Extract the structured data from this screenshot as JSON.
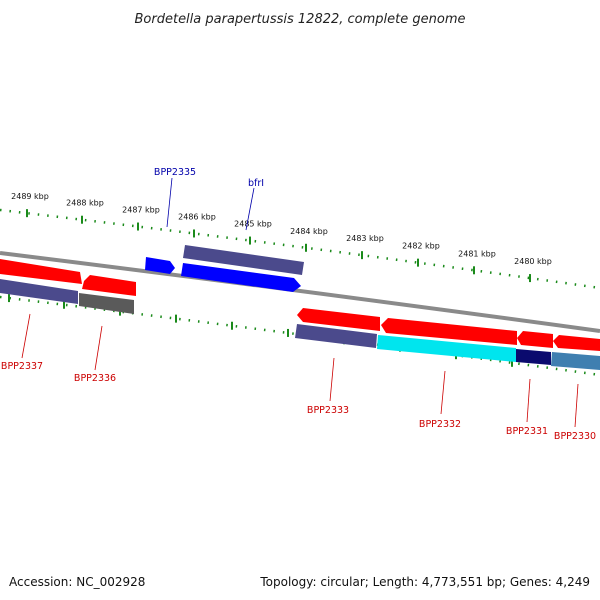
{
  "title": "Bordetella parapertussis 12822, complete genome",
  "footer": {
    "accession": "Accession: NC_002928",
    "summary": "Topology: circular; Length: 4,773,551 bp; Genes: 4,249"
  },
  "colors": {
    "forward_red": "#ff0000",
    "reverse_red": "#ff0000",
    "blue": "#0000ff",
    "purple": "#4b4a8c",
    "gray": "#555555",
    "cyan": "#00e5ee",
    "navy": "#0a0a6e",
    "steel": "#3f7fb0",
    "tick_green": "#1a8a1a",
    "label_blue": "#0000aa",
    "label_red": "#cc0000"
  },
  "scale": {
    "unit": "kbp",
    "labels": [
      "2489 kbp",
      "2488 kbp",
      "2487 kbp",
      "2486 kbp",
      "2485 kbp",
      "2484 kbp",
      "2483 kbp",
      "2482 kbp",
      "2481 kbp",
      "2480 kbp"
    ]
  },
  "gene_labels": [
    {
      "text": "BPP2335",
      "color": "blue"
    },
    {
      "text": "bfrI",
      "color": "blue"
    },
    {
      "text": "BPP2337",
      "color": "red"
    },
    {
      "text": "BPP2336",
      "color": "red"
    },
    {
      "text": "BPP2333",
      "color": "red"
    },
    {
      "text": "BPP2332",
      "color": "red"
    },
    {
      "text": "BPP2331",
      "color": "red"
    },
    {
      "text": "BPP2330",
      "color": "red"
    }
  ]
}
